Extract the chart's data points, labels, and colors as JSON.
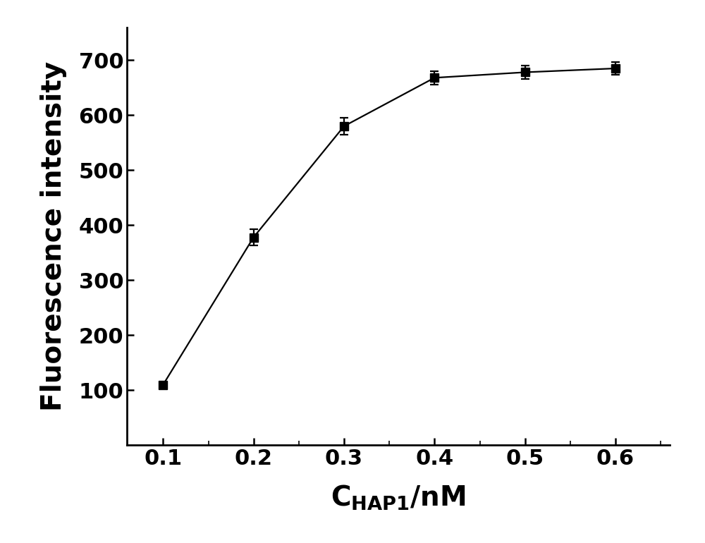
{
  "x": [
    0.1,
    0.2,
    0.3,
    0.4,
    0.5,
    0.6
  ],
  "y": [
    110,
    378,
    580,
    668,
    678,
    685
  ],
  "yerr": [
    0,
    15,
    15,
    12,
    12,
    12
  ],
  "ylabel": "Fluorescence intensity",
  "xlim": [
    0.06,
    0.66
  ],
  "ylim": [
    0,
    760
  ],
  "xticks": [
    0.1,
    0.2,
    0.3,
    0.4,
    0.5,
    0.6
  ],
  "yticks": [
    100,
    200,
    300,
    400,
    500,
    600,
    700
  ],
  "line_color": "#666666",
  "marker_color": "#000000",
  "marker_size": 9,
  "linewidth": 1.6,
  "tick_fontsize": 22,
  "label_fontsize": 28,
  "background_color": "#ffffff"
}
